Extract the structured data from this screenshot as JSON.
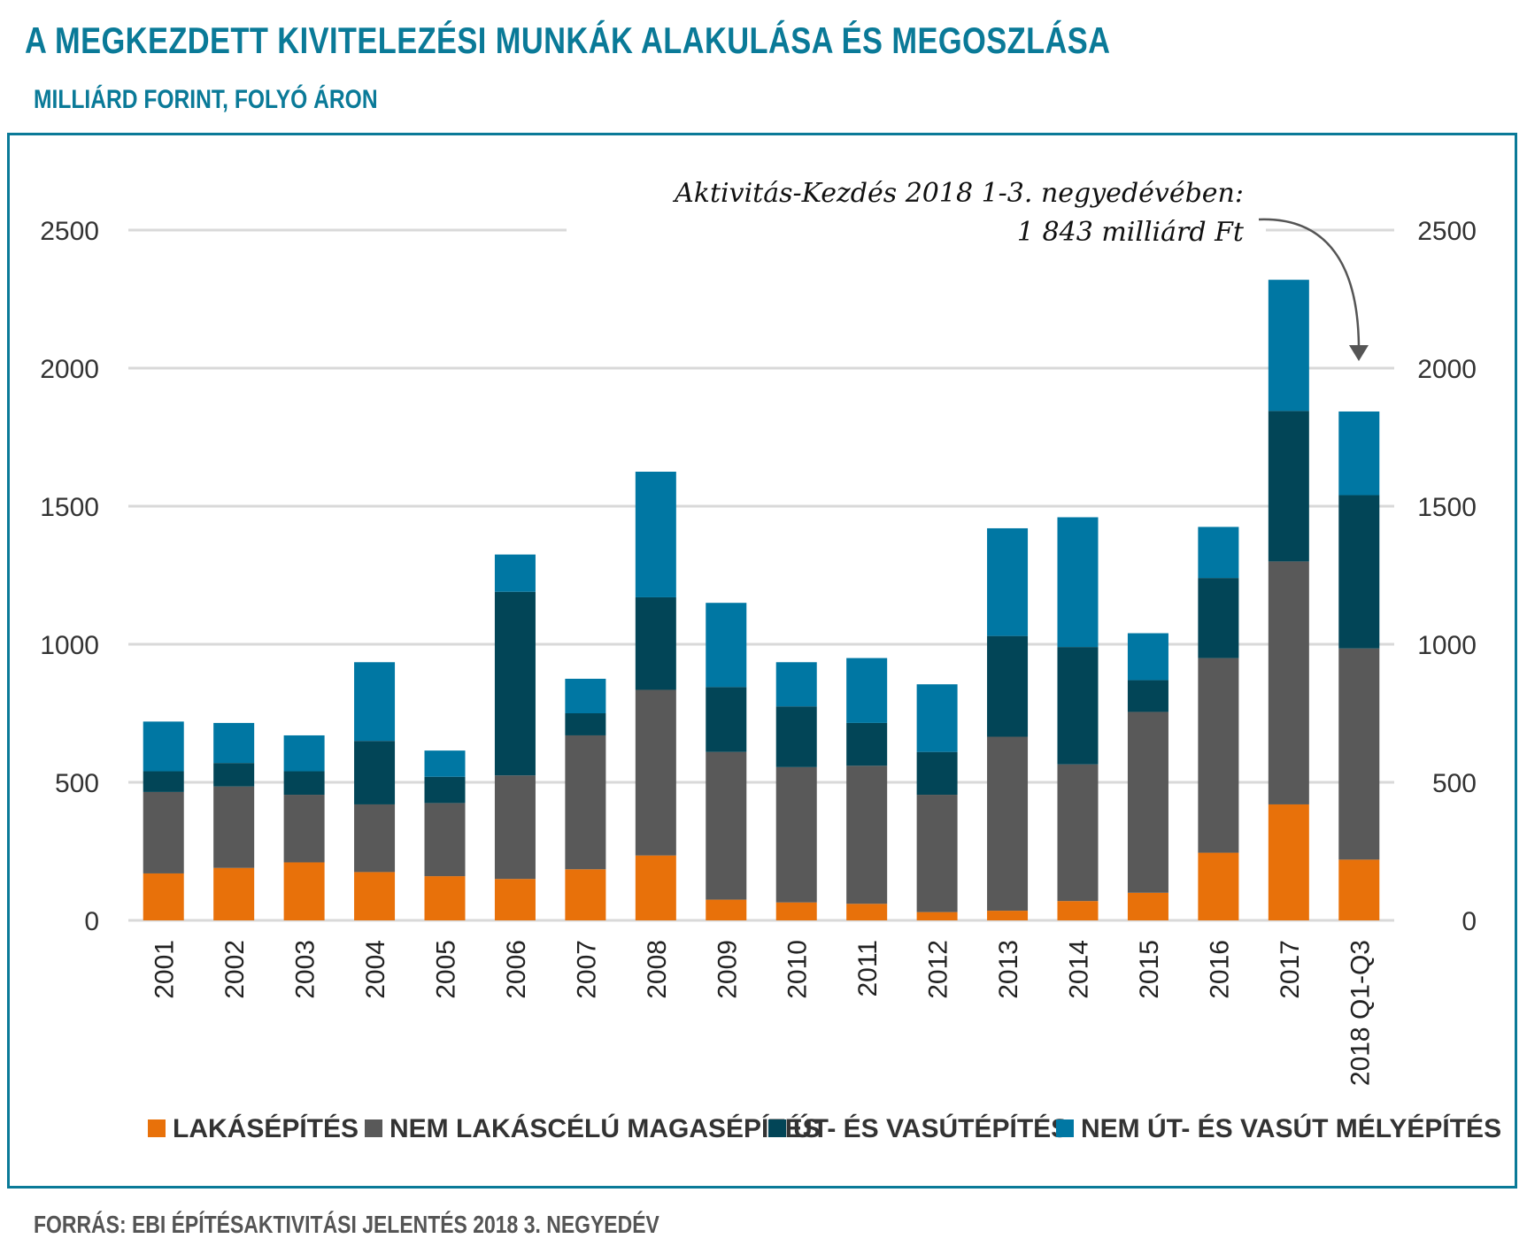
{
  "title": "A MEGKEZDETT KIVITELEZÉSI MUNKÁK ALAKULÁSA ÉS MEGOSZLÁSA",
  "subtitle": "MILLIÁRD FORINT, FOLYÓ ÁRON",
  "source": "FORRÁS: EBI ÉPÍTÉSAKTIVITÁSI JELENTÉS 2018 3. NEGYEDÉV",
  "annotation": {
    "line1": "Aktivitás-Kezdés 2018 1-3. negyedévében:",
    "line2": "1 843 milliárd Ft"
  },
  "colors": {
    "lakas": "#e8710a",
    "nem_lakas": "#595959",
    "ut_vasut": "#024557",
    "nem_ut": "#0077a3",
    "grid": "#d9d9d9",
    "frame": "#0a7a98"
  },
  "chart_data": {
    "type": "bar",
    "stacked": true,
    "title": "A MEGKEZDETT KIVITELEZÉSI MUNKÁK ALAKULÁSA ÉS MEGOSZLÁSA",
    "ylabel": "MILLIÁRD FORINT, FOLYÓ ÁRON",
    "ylim": [
      0,
      2500
    ],
    "yticks": [
      0,
      500,
      1000,
      1500,
      2000,
      2500
    ],
    "grid": true,
    "legend_position": "bottom",
    "categories": [
      "2001",
      "2002",
      "2003",
      "2004",
      "2005",
      "2006",
      "2007",
      "2008",
      "2009",
      "2010",
      "2011",
      "2012",
      "2013",
      "2014",
      "2015",
      "2016",
      "2017",
      "2018 Q1-Q3"
    ],
    "series": [
      {
        "name": "LAKÁSÉPÍTÉS",
        "color_key": "lakas",
        "values": [
          170,
          190,
          210,
          175,
          160,
          150,
          185,
          235,
          75,
          65,
          60,
          30,
          35,
          70,
          100,
          245,
          420,
          220
        ]
      },
      {
        "name": "NEM LAKÁSCÉLÚ MAGASÉPÍTÉS",
        "color_key": "nem_lakas",
        "values": [
          295,
          295,
          245,
          245,
          265,
          375,
          485,
          600,
          535,
          490,
          500,
          425,
          630,
          495,
          655,
          705,
          880,
          765
        ]
      },
      {
        "name": "ÚT- ÉS VASÚTÉPÍTÉS",
        "color_key": "ut_vasut",
        "values": [
          75,
          85,
          85,
          230,
          95,
          665,
          80,
          335,
          235,
          220,
          155,
          155,
          365,
          425,
          115,
          290,
          545,
          555
        ]
      },
      {
        "name": "NEM ÚT- ÉS VASÚT MÉLYÉPÍTÉS",
        "color_key": "nem_ut",
        "values": [
          180,
          145,
          130,
          285,
          95,
          135,
          125,
          455,
          305,
          160,
          235,
          245,
          390,
          470,
          170,
          185,
          475,
          303
        ]
      }
    ]
  }
}
